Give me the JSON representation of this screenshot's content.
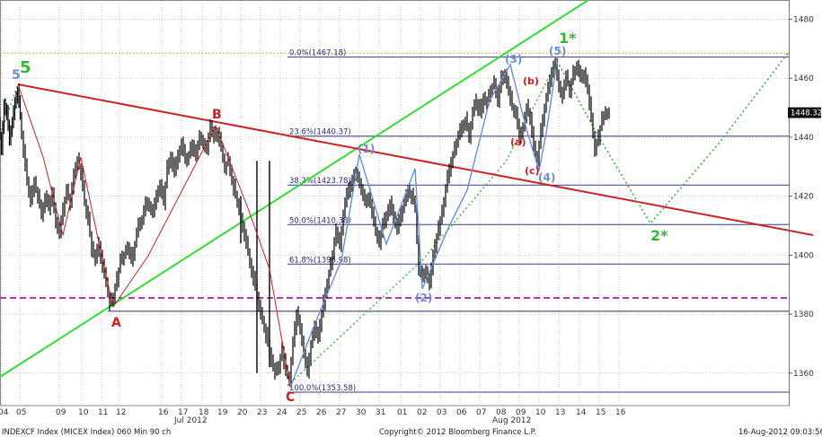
{
  "chart_data": {
    "type": "candlestick",
    "title": "INDEXCF Index (MICEX Index) 060 Min 90 ch",
    "copyright": "Copyright© 2012 Bloomberg Finance L.P.",
    "timestamp": "16-Aug-2012 09:03:56",
    "y_ticks": [
      1360,
      1380,
      1400,
      1420,
      1440,
      1460,
      1480
    ],
    "ylim": [
      1349,
      1485
    ],
    "last_price": "1448.32",
    "x_tick_labels": [
      "04",
      "05",
      "09",
      "10",
      "11",
      "12",
      "16",
      "17",
      "18",
      "19",
      "20",
      "23",
      "24",
      "25",
      "26",
      "27",
      "30",
      "31",
      "01",
      "02",
      "03",
      "06",
      "07",
      "08",
      "09",
      "10",
      "13",
      "14",
      "15",
      "16"
    ],
    "month_labels": [
      "Jul 2012",
      "Aug 2012"
    ],
    "fib_levels": [
      {
        "label": "0.0%(1467.18)",
        "value": 1467.18
      },
      {
        "label": "23.6%(1440.37)",
        "value": 1440.37
      },
      {
        "label": "38.2%(1423.78)",
        "value": 1423.78
      },
      {
        "label": "50.0%(1410.38)",
        "value": 1410.38
      },
      {
        "label": "61.8%(1396.98)",
        "value": 1396.98
      },
      {
        "label": "100.0%(1353.58)",
        "value": 1353.58
      }
    ],
    "horizontal_lines": [
      {
        "value": 1468.5,
        "style": "orange-dotted"
      },
      {
        "value": 1385.5,
        "style": "magenta-dashed"
      },
      {
        "value": 1381,
        "style": "navy-solid"
      }
    ],
    "price_path": [
      [
        0,
        1444
      ],
      [
        3,
        1436
      ],
      [
        6,
        1452
      ],
      [
        9,
        1448
      ],
      [
        12,
        1438
      ],
      [
        15,
        1444
      ],
      [
        18,
        1452
      ],
      [
        21,
        1456
      ],
      [
        24,
        1447
      ],
      [
        28,
        1436
      ],
      [
        32,
        1425
      ],
      [
        36,
        1418
      ],
      [
        40,
        1424
      ],
      [
        44,
        1420
      ],
      [
        48,
        1414
      ],
      [
        52,
        1420
      ],
      [
        56,
        1416
      ],
      [
        60,
        1422
      ],
      [
        64,
        1412
      ],
      [
        68,
        1408
      ],
      [
        72,
        1416
      ],
      [
        76,
        1422
      ],
      [
        80,
        1418
      ],
      [
        84,
        1428
      ],
      [
        88,
        1432
      ],
      [
        92,
        1428
      ],
      [
        96,
        1418
      ],
      [
        100,
        1412
      ],
      [
        104,
        1402
      ],
      [
        108,
        1398
      ],
      [
        112,
        1404
      ],
      [
        116,
        1396
      ],
      [
        120,
        1390
      ],
      [
        124,
        1384
      ],
      [
        128,
        1386
      ],
      [
        132,
        1392
      ],
      [
        136,
        1398
      ],
      [
        140,
        1400
      ],
      [
        144,
        1402
      ],
      [
        148,
        1398
      ],
      [
        152,
        1404
      ],
      [
        156,
        1410
      ],
      [
        160,
        1412
      ],
      [
        164,
        1418
      ],
      [
        168,
        1416
      ],
      [
        172,
        1414
      ],
      [
        176,
        1420
      ],
      [
        180,
        1424
      ],
      [
        184,
        1418
      ],
      [
        188,
        1430
      ],
      [
        192,
        1434
      ],
      [
        196,
        1428
      ],
      [
        200,
        1434
      ],
      [
        204,
        1438
      ],
      [
        208,
        1432
      ],
      [
        212,
        1434
      ],
      [
        216,
        1438
      ],
      [
        220,
        1434
      ],
      [
        224,
        1440
      ],
      [
        228,
        1438
      ],
      [
        232,
        1436
      ],
      [
        236,
        1444
      ],
      [
        240,
        1440
      ],
      [
        244,
        1442
      ],
      [
        248,
        1436
      ],
      [
        252,
        1430
      ],
      [
        256,
        1432
      ],
      [
        260,
        1426
      ],
      [
        264,
        1420
      ],
      [
        268,
        1416
      ],
      [
        272,
        1410
      ],
      [
        276,
        1404
      ],
      [
        280,
        1398
      ],
      [
        284,
        1392
      ],
      [
        288,
        1386
      ],
      [
        292,
        1380
      ],
      [
        296,
        1376
      ],
      [
        300,
        1370
      ],
      [
        304,
        1364
      ],
      [
        308,
        1360
      ],
      [
        312,
        1362
      ],
      [
        316,
        1368
      ],
      [
        320,
        1360
      ],
      [
        324,
        1358
      ],
      [
        328,
        1370
      ],
      [
        332,
        1380
      ],
      [
        336,
        1374
      ],
      [
        340,
        1366
      ],
      [
        344,
        1360
      ],
      [
        348,
        1370
      ],
      [
        352,
        1376
      ],
      [
        356,
        1372
      ],
      [
        360,
        1380
      ],
      [
        364,
        1388
      ],
      [
        368,
        1394
      ],
      [
        372,
        1400
      ],
      [
        376,
        1408
      ],
      [
        380,
        1404
      ],
      [
        384,
        1414
      ],
      [
        388,
        1420
      ],
      [
        392,
        1424
      ],
      [
        396,
        1428
      ],
      [
        400,
        1426
      ],
      [
        404,
        1422
      ],
      [
        408,
        1418
      ],
      [
        412,
        1420
      ],
      [
        416,
        1414
      ],
      [
        420,
        1408
      ],
      [
        424,
        1404
      ],
      [
        428,
        1410
      ],
      [
        432,
        1414
      ],
      [
        436,
        1418
      ],
      [
        440,
        1412
      ],
      [
        444,
        1408
      ],
      [
        448,
        1414
      ],
      [
        452,
        1418
      ],
      [
        456,
        1422
      ],
      [
        460,
        1420
      ],
      [
        464,
        1416
      ],
      [
        468,
        1396
      ],
      [
        472,
        1392
      ],
      [
        476,
        1394
      ],
      [
        480,
        1390
      ],
      [
        484,
        1400
      ],
      [
        488,
        1406
      ],
      [
        492,
        1412
      ],
      [
        496,
        1418
      ],
      [
        500,
        1426
      ],
      [
        504,
        1432
      ],
      [
        508,
        1436
      ],
      [
        512,
        1440
      ],
      [
        516,
        1444
      ],
      [
        520,
        1446
      ],
      [
        524,
        1440
      ],
      [
        528,
        1448
      ],
      [
        532,
        1452
      ],
      [
        536,
        1448
      ],
      [
        540,
        1454
      ],
      [
        544,
        1452
      ],
      [
        548,
        1456
      ],
      [
        552,
        1458
      ],
      [
        556,
        1452
      ],
      [
        560,
        1460
      ],
      [
        564,
        1462
      ],
      [
        568,
        1456
      ],
      [
        572,
        1450
      ],
      [
        576,
        1448
      ],
      [
        580,
        1440
      ],
      [
        584,
        1444
      ],
      [
        588,
        1450
      ],
      [
        592,
        1446
      ],
      [
        596,
        1436
      ],
      [
        600,
        1432
      ],
      [
        604,
        1442
      ],
      [
        608,
        1450
      ],
      [
        612,
        1456
      ],
      [
        616,
        1462
      ],
      [
        620,
        1466
      ],
      [
        624,
        1458
      ],
      [
        628,
        1454
      ],
      [
        632,
        1460
      ],
      [
        636,
        1456
      ],
      [
        640,
        1462
      ],
      [
        644,
        1464
      ],
      [
        648,
        1460
      ],
      [
        652,
        1462
      ],
      [
        656,
        1456
      ],
      [
        660,
        1446
      ],
      [
        664,
        1436
      ],
      [
        668,
        1440
      ],
      [
        672,
        1446
      ],
      [
        676,
        1448
      ],
      [
        680,
        1448.32
      ]
    ],
    "wave_labels": [
      {
        "text": "5",
        "color": "#33b833"
      },
      {
        "text": "A",
        "color": "#cc1f1f"
      },
      {
        "text": "B",
        "color": "#cc1f1f"
      },
      {
        "text": "C",
        "color": "#cc1f1f"
      },
      {
        "text": "(1)",
        "color": "#6a8fd6"
      },
      {
        "text": "(2)",
        "color": "#6a8fd6"
      },
      {
        "text": "(3)",
        "color": "#6a8fd6"
      },
      {
        "text": "(4)",
        "color": "#6a8fd6"
      },
      {
        "text": "(5)",
        "color": "#6a8fd6"
      },
      {
        "text": "(a)",
        "color": "#cc1f1f"
      },
      {
        "text": "(b)",
        "color": "#cc1f1f"
      },
      {
        "text": "(c)",
        "color": "#cc1f1f"
      },
      {
        "text": "1*",
        "color": "#33b833"
      },
      {
        "text": "2*",
        "color": "#33b833"
      }
    ],
    "colors": {
      "grid": "#a0a0a0",
      "fib_line": "#3a3a8a",
      "green_trend": "#33dd33",
      "red_trend": "#cc2222",
      "blue_wave": "#6a8fd6",
      "candles": "#000000"
    }
  }
}
